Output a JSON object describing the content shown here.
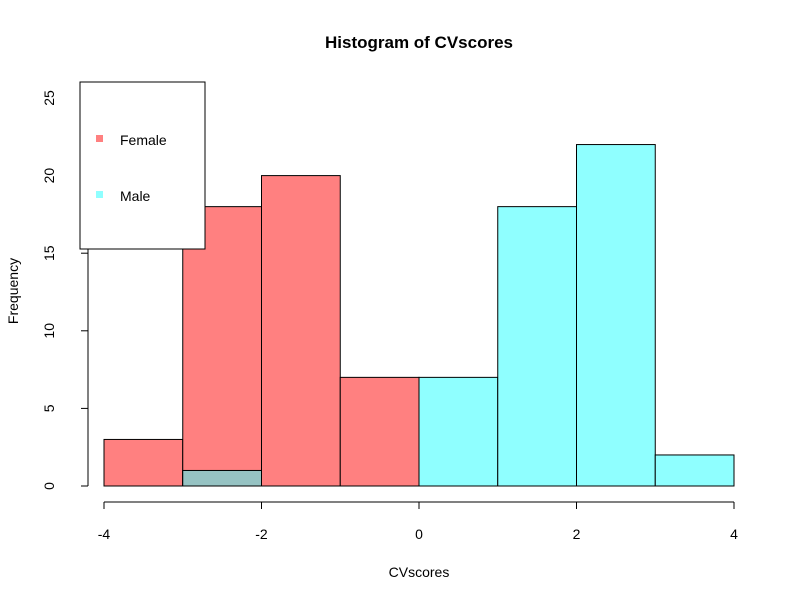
{
  "chart_data": {
    "type": "bar",
    "title": "Histogram of CVscores",
    "xlabel": "CVscores",
    "ylabel": "Frequency",
    "xlim": [
      -4,
      4
    ],
    "ylim": [
      0,
      25
    ],
    "x_ticks": [
      "-4",
      "-2",
      "0",
      "2",
      "4"
    ],
    "y_ticks": [
      "0",
      "5",
      "10",
      "15",
      "20",
      "25"
    ],
    "bin_edges": [
      -4,
      -3,
      -2,
      -1,
      0,
      1,
      2,
      3,
      4
    ],
    "grid": false,
    "legend_position": "top-left",
    "series": [
      {
        "name": "Female",
        "color": "#ff8080",
        "values": [
          3,
          18,
          20,
          7,
          0,
          0,
          0,
          0
        ]
      },
      {
        "name": "Male",
        "color": "#8fffff",
        "values": [
          0,
          1,
          0,
          0,
          7,
          18,
          22,
          2
        ]
      }
    ],
    "overlap_color": "#96c3c3"
  }
}
